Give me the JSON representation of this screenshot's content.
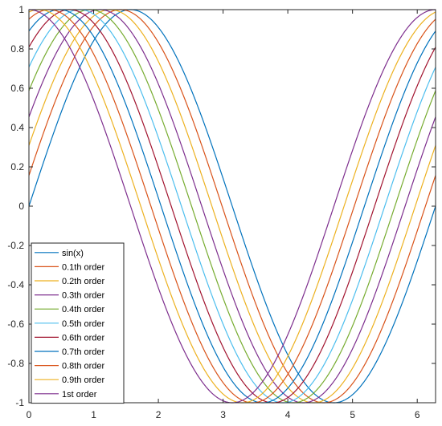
{
  "chart_data": {
    "type": "line",
    "title": "",
    "xlabel": "",
    "ylabel": "",
    "xlim": [
      0,
      6.2832
    ],
    "ylim": [
      -1,
      1
    ],
    "x_ticks": [
      "0",
      "1",
      "2",
      "3",
      "4",
      "5",
      "6"
    ],
    "y_ticks": [
      "1",
      "0.8",
      "0.6",
      "0.4",
      "0.2",
      "0",
      "-0.2",
      "-0.4",
      "-0.6",
      "-0.8",
      "-1"
    ],
    "legend_position": "bottom-left",
    "grid": false,
    "series": [
      {
        "name": "sin(x)",
        "order": 0.0,
        "color": "#0072BD"
      },
      {
        "name": "0.1th order",
        "order": 0.1,
        "color": "#D95319"
      },
      {
        "name": "0.2th order",
        "order": 0.2,
        "color": "#EDB120"
      },
      {
        "name": "0.3th order",
        "order": 0.3,
        "color": "#7E2F8E"
      },
      {
        "name": "0.4th order",
        "order": 0.4,
        "color": "#77AC30"
      },
      {
        "name": "0.5th order",
        "order": 0.5,
        "color": "#4DBEEE"
      },
      {
        "name": "0.6th order",
        "order": 0.6,
        "color": "#A2142F"
      },
      {
        "name": "0.7th order",
        "order": 0.7,
        "color": "#0072BD"
      },
      {
        "name": "0.8th order",
        "order": 0.8,
        "color": "#D95319"
      },
      {
        "name": "0.9th order",
        "order": 0.9,
        "color": "#EDB120"
      },
      {
        "name": "1st order",
        "order": 1.0,
        "color": "#7E2F8E"
      }
    ]
  }
}
